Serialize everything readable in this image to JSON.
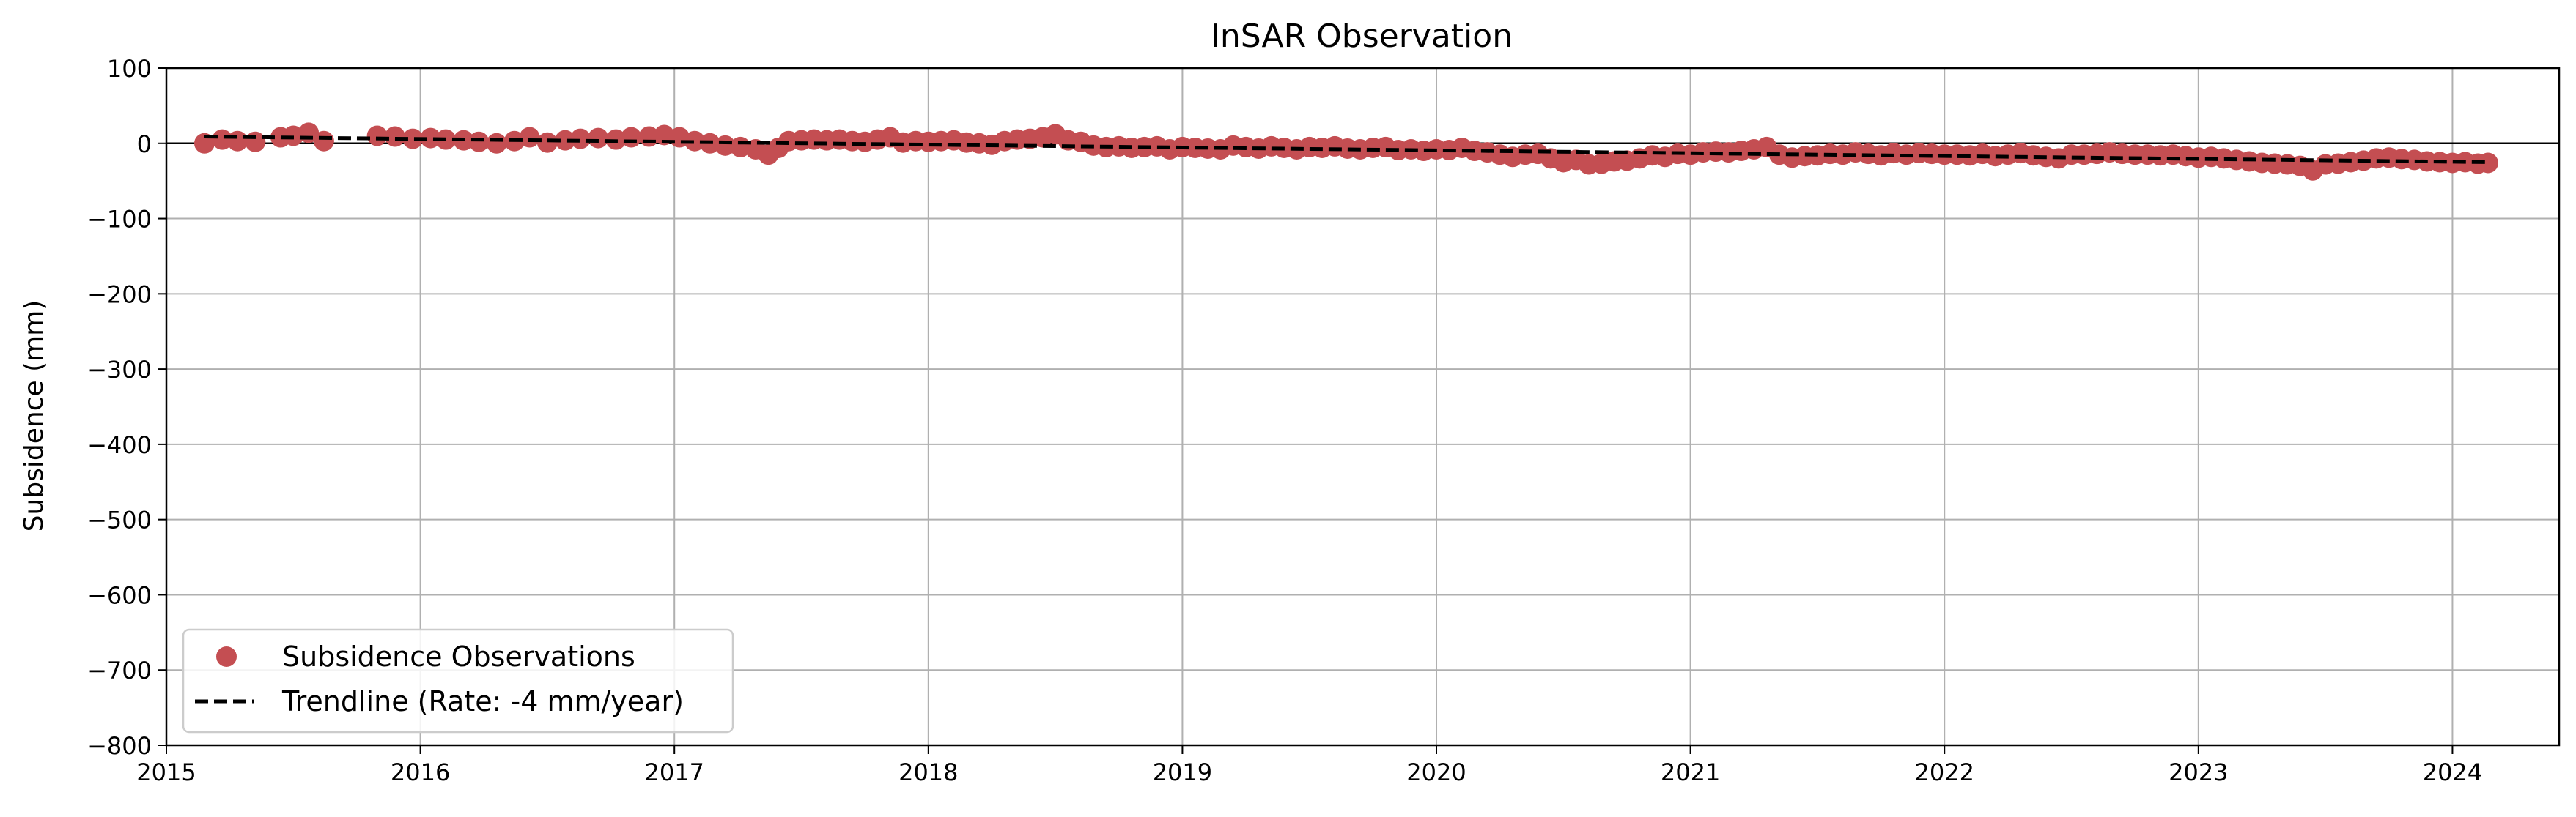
{
  "chart_data": {
    "type": "scatter",
    "title": "InSAR Observation",
    "xlabel": "",
    "ylabel": "Subsidence (mm)",
    "xlim": [
      2015,
      2024.42
    ],
    "ylim": [
      -800,
      100
    ],
    "x_ticks": [
      "2015",
      "2016",
      "2017",
      "2018",
      "2019",
      "2020",
      "2021",
      "2022",
      "2023",
      "2024"
    ],
    "y_ticks": [
      "100",
      "0",
      "−100",
      "−200",
      "−300",
      "−400",
      "−500",
      "−600",
      "−700",
      "−800"
    ],
    "grid": true,
    "zero_line": 0,
    "legend_position": "lower-left",
    "colors": {
      "observations": "#c44e52",
      "trendline": "#000000",
      "grid": "#b0b0b0"
    },
    "series": [
      {
        "name": "Subsidence Observations",
        "kind": "scatter",
        "x": [
          2015.15,
          2015.22,
          2015.28,
          2015.35,
          2015.45,
          2015.5,
          2015.56,
          2015.62,
          2015.83,
          2015.9,
          2015.97,
          2016.04,
          2016.1,
          2016.17,
          2016.23,
          2016.3,
          2016.37,
          2016.43,
          2016.5,
          2016.57,
          2016.63,
          2016.7,
          2016.77,
          2016.83,
          2016.9,
          2016.96,
          2017.02,
          2017.08,
          2017.14,
          2017.2,
          2017.26,
          2017.32,
          2017.37,
          2017.41,
          2017.45,
          2017.5,
          2017.55,
          2017.6,
          2017.65,
          2017.7,
          2017.75,
          2017.8,
          2017.85,
          2017.9,
          2017.95,
          2018.0,
          2018.05,
          2018.1,
          2018.15,
          2018.2,
          2018.25,
          2018.3,
          2018.35,
          2018.4,
          2018.45,
          2018.5,
          2018.55,
          2018.6,
          2018.65,
          2018.7,
          2018.75,
          2018.8,
          2018.85,
          2018.9,
          2018.95,
          2019.0,
          2019.05,
          2019.1,
          2019.15,
          2019.2,
          2019.25,
          2019.3,
          2019.35,
          2019.4,
          2019.45,
          2019.5,
          2019.55,
          2019.6,
          2019.65,
          2019.7,
          2019.75,
          2019.8,
          2019.85,
          2019.9,
          2019.95,
          2020.0,
          2020.05,
          2020.1,
          2020.15,
          2020.2,
          2020.25,
          2020.3,
          2020.35,
          2020.4,
          2020.45,
          2020.5,
          2020.55,
          2020.6,
          2020.65,
          2020.7,
          2020.75,
          2020.8,
          2020.85,
          2020.9,
          2020.95,
          2021.0,
          2021.05,
          2021.1,
          2021.15,
          2021.2,
          2021.25,
          2021.3,
          2021.35,
          2021.4,
          2021.45,
          2021.5,
          2021.55,
          2021.6,
          2021.65,
          2021.7,
          2021.75,
          2021.8,
          2021.85,
          2021.9,
          2021.95,
          2022.0,
          2022.05,
          2022.1,
          2022.15,
          2022.2,
          2022.25,
          2022.3,
          2022.35,
          2022.4,
          2022.45,
          2022.5,
          2022.55,
          2022.6,
          2022.65,
          2022.7,
          2022.75,
          2022.8,
          2022.85,
          2022.9,
          2022.95,
          2023.0,
          2023.05,
          2023.1,
          2023.15,
          2023.2,
          2023.25,
          2023.3,
          2023.35,
          2023.4,
          2023.45,
          2023.5,
          2023.55,
          2023.6,
          2023.65,
          2023.7,
          2023.75,
          2023.8,
          2023.85,
          2023.9,
          2023.95,
          2024.0,
          2024.05,
          2024.1,
          2024.14
        ],
        "y": [
          0,
          5,
          3,
          2,
          8,
          10,
          14,
          3,
          10,
          9,
          6,
          7,
          5,
          4,
          2,
          0,
          3,
          8,
          1,
          4,
          6,
          7,
          5,
          8,
          9,
          11,
          8,
          3,
          0,
          -3,
          -5,
          -8,
          -15,
          -6,
          3,
          4,
          5,
          4,
          5,
          3,
          2,
          5,
          8,
          1,
          3,
          2,
          3,
          4,
          1,
          0,
          -2,
          3,
          5,
          6,
          8,
          12,
          4,
          2,
          -3,
          -5,
          -4,
          -6,
          -5,
          -4,
          -8,
          -5,
          -6,
          -7,
          -8,
          -3,
          -5,
          -7,
          -4,
          -6,
          -8,
          -5,
          -6,
          -4,
          -7,
          -8,
          -6,
          -5,
          -9,
          -8,
          -10,
          -8,
          -9,
          -6,
          -10,
          -12,
          -15,
          -18,
          -15,
          -14,
          -20,
          -25,
          -22,
          -28,
          -27,
          -24,
          -23,
          -20,
          -16,
          -18,
          -14,
          -15,
          -12,
          -11,
          -12,
          -10,
          -8,
          -5,
          -15,
          -19,
          -17,
          -16,
          -14,
          -15,
          -12,
          -14,
          -16,
          -13,
          -15,
          -13,
          -14,
          -15,
          -15,
          -16,
          -14,
          -17,
          -15,
          -13,
          -16,
          -18,
          -20,
          -15,
          -15,
          -14,
          -12,
          -14,
          -15,
          -15,
          -16,
          -15,
          -17,
          -19,
          -18,
          -20,
          -22,
          -24,
          -26,
          -27,
          -28,
          -30,
          -36,
          -28,
          -27,
          -25,
          -23,
          -20,
          -19,
          -21,
          -22,
          -24,
          -25,
          -26,
          -25,
          -27,
          -26
        ]
      },
      {
        "name": "Trendline (Rate: -4 mm/year)",
        "kind": "line",
        "style": "dashed",
        "x": [
          2015.15,
          2024.14
        ],
        "y": [
          9,
          -25
        ]
      }
    ]
  }
}
